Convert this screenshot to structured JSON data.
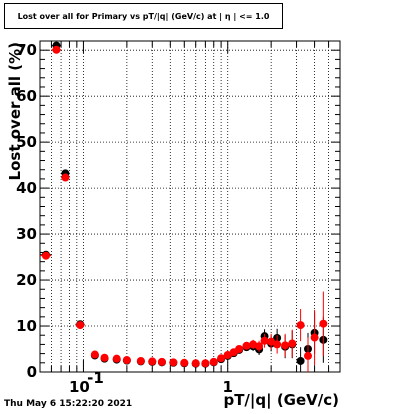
{
  "chart_data": {
    "type": "scatter",
    "title": "Lost over all for Primary vs pT/|q| (GeV/c) at |  η  | <= 1.0",
    "xlabel": "pT/|q| (GeV/c)",
    "ylabel": "Lost over all (%)",
    "xscale": "log",
    "xlim": [
      0.05,
      6.0
    ],
    "ylim": [
      0,
      72
    ],
    "x_ticks": [
      {
        "value": 0.1,
        "base": "10",
        "exp": "-1"
      },
      {
        "value": 1,
        "label": "1"
      }
    ],
    "y_ticks": [
      0,
      10,
      20,
      30,
      40,
      50,
      60,
      70
    ],
    "grid": true,
    "legend": "none",
    "colors": {
      "series_black": "#000000",
      "series_red": "#ff0000"
    },
    "series": [
      {
        "color": "#000000",
        "points": [
          {
            "x": 0.055,
            "y": 25.5,
            "xerr": 0.005,
            "yerr": 0.6
          },
          {
            "x": 0.065,
            "y": 71.0,
            "xerr": 0.005,
            "yerr": 0.6
          },
          {
            "x": 0.075,
            "y": 43.2,
            "xerr": 0.005,
            "yerr": 0.6
          },
          {
            "x": 0.095,
            "y": 10.4,
            "xerr": 0.007,
            "yerr": 0.6
          },
          {
            "x": 0.12,
            "y": 3.6,
            "xerr": 0.005,
            "yerr": 0.4
          },
          {
            "x": 0.14,
            "y": 2.9,
            "yerr": 0.3
          },
          {
            "x": 0.17,
            "y": 2.7,
            "yerr": 0.3
          },
          {
            "x": 0.2,
            "y": 2.5,
            "yerr": 0.3
          },
          {
            "x": 0.25,
            "y": 2.3,
            "yerr": 0.3
          },
          {
            "x": 0.3,
            "y": 2.2,
            "yerr": 0.3
          },
          {
            "x": 0.35,
            "y": 2.1,
            "yerr": 0.3
          },
          {
            "x": 0.42,
            "y": 2.0,
            "yerr": 0.3
          },
          {
            "x": 0.5,
            "y": 1.9,
            "yerr": 0.3
          },
          {
            "x": 0.6,
            "y": 1.8,
            "yerr": 0.3
          },
          {
            "x": 0.7,
            "y": 1.8,
            "yerr": 0.3
          },
          {
            "x": 0.8,
            "y": 2.1,
            "yerr": 0.4
          },
          {
            "x": 0.9,
            "y": 2.8,
            "yerr": 0.5
          },
          {
            "x": 1.0,
            "y": 3.5,
            "yerr": 0.5
          },
          {
            "x": 1.1,
            "y": 4.1,
            "yerr": 0.6
          },
          {
            "x": 1.2,
            "y": 4.8,
            "yerr": 0.6
          },
          {
            "x": 1.35,
            "y": 5.4,
            "yerr": 0.8
          },
          {
            "x": 1.5,
            "y": 5.6,
            "yerr": 1.0
          },
          {
            "x": 1.65,
            "y": 4.9,
            "yerr": 1.2
          },
          {
            "x": 1.8,
            "y": 7.8,
            "yerr": 1.5
          },
          {
            "x": 2.0,
            "y": 6.2,
            "yerr": 1.7
          },
          {
            "x": 2.2,
            "y": 7.4,
            "yerr": 2.0
          },
          {
            "x": 2.5,
            "y": 5.5,
            "yerr": 2.5
          },
          {
            "x": 2.8,
            "y": 6.0,
            "yerr": 3.0
          },
          {
            "x": 3.2,
            "y": 2.4,
            "yerr": 3.0
          },
          {
            "x": 3.6,
            "y": 5.0,
            "yerr": 3.5
          },
          {
            "x": 4.0,
            "y": 8.5,
            "yerr": 4.5
          },
          {
            "x": 4.6,
            "y": 7.0,
            "yerr": 5.0
          }
        ]
      },
      {
        "color": "#ff0000",
        "points": [
          {
            "x": 0.055,
            "y": 25.3,
            "xerr": 0.005,
            "yerr": 0.6
          },
          {
            "x": 0.065,
            "y": 70.1,
            "xerr": 0.005,
            "yerr": 0.6
          },
          {
            "x": 0.075,
            "y": 42.3,
            "xerr": 0.005,
            "yerr": 0.6
          },
          {
            "x": 0.095,
            "y": 10.2,
            "xerr": 0.007,
            "yerr": 0.6
          },
          {
            "x": 0.12,
            "y": 3.8,
            "xerr": 0.005,
            "yerr": 0.4
          },
          {
            "x": 0.14,
            "y": 3.1,
            "yerr": 0.3
          },
          {
            "x": 0.17,
            "y": 2.9,
            "yerr": 0.3
          },
          {
            "x": 0.2,
            "y": 2.6,
            "yerr": 0.3
          },
          {
            "x": 0.25,
            "y": 2.4,
            "yerr": 0.3
          },
          {
            "x": 0.3,
            "y": 2.3,
            "yerr": 0.3
          },
          {
            "x": 0.35,
            "y": 2.2,
            "yerr": 0.3
          },
          {
            "x": 0.42,
            "y": 2.1,
            "yerr": 0.3
          },
          {
            "x": 0.5,
            "y": 2.0,
            "yerr": 0.3
          },
          {
            "x": 0.6,
            "y": 1.9,
            "yerr": 0.3
          },
          {
            "x": 0.7,
            "y": 1.9,
            "yerr": 0.3
          },
          {
            "x": 0.8,
            "y": 2.2,
            "yerr": 0.4
          },
          {
            "x": 0.9,
            "y": 3.0,
            "yerr": 0.5
          },
          {
            "x": 1.0,
            "y": 3.7,
            "yerr": 0.5
          },
          {
            "x": 1.1,
            "y": 4.3,
            "yerr": 0.6
          },
          {
            "x": 1.2,
            "y": 5.0,
            "yerr": 0.6
          },
          {
            "x": 1.35,
            "y": 5.7,
            "yerr": 0.8
          },
          {
            "x": 1.5,
            "y": 6.0,
            "yerr": 1.0
          },
          {
            "x": 1.65,
            "y": 5.6,
            "yerr": 1.2
          },
          {
            "x": 1.8,
            "y": 6.8,
            "yerr": 1.5
          },
          {
            "x": 2.0,
            "y": 6.6,
            "yerr": 1.7
          },
          {
            "x": 2.2,
            "y": 6.0,
            "yerr": 2.0
          },
          {
            "x": 2.5,
            "y": 5.8,
            "yerr": 2.5
          },
          {
            "x": 2.8,
            "y": 6.2,
            "yerr": 3.0
          },
          {
            "x": 3.2,
            "y": 10.2,
            "yerr": 3.5
          },
          {
            "x": 3.6,
            "y": 3.5,
            "yerr": 4.0
          },
          {
            "x": 4.0,
            "y": 7.5,
            "yerr": 6.0
          },
          {
            "x": 4.6,
            "y": 10.5,
            "yerr": 7.0
          }
        ]
      }
    ]
  },
  "footer": {
    "timestamp": "Thu May  6 15:22:20 2021"
  }
}
